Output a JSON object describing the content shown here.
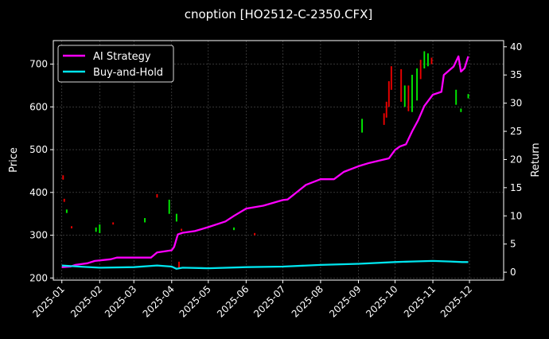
{
  "chart_data": {
    "type": "line",
    "title": "cnoption [HO2512-C-2350.CFX]",
    "ylabel_left": "Price",
    "ylabel_right": "Return",
    "xlabel": "",
    "xlim": [
      "2024-12-25",
      "2025-12-29"
    ],
    "ylim_left": [
      195,
      755
    ],
    "ylim_right": [
      -1.4,
      41.1
    ],
    "x_ticks": [
      "2025-01",
      "2025-02",
      "2025-03",
      "2025-04",
      "2025-05",
      "2025-06",
      "2025-07",
      "2025-08",
      "2025-09",
      "2025-10",
      "2025-11",
      "2025-12"
    ],
    "y_ticks_left": [
      200,
      300,
      400,
      500,
      600,
      700
    ],
    "y_ticks_right": [
      0,
      5,
      10,
      15,
      20,
      25,
      30,
      35,
      40
    ],
    "grid": true,
    "legend": {
      "position": "top-left",
      "entries": [
        "AI Strategy",
        "Buy-and-Hold"
      ]
    },
    "colors": {
      "ai_strategy": "#ff00ff",
      "buy_and_hold": "#00e5ee",
      "candle_up": "#00ff00",
      "candle_down": "#ff0000",
      "grid": "#555555",
      "axis": "#ffffff",
      "background": "#000000"
    },
    "series": [
      {
        "name": "AI Strategy",
        "axis": "right",
        "points": [
          [
            "2025-01-01",
            0.9
          ],
          [
            "2025-01-08",
            1.0
          ],
          [
            "2025-01-12",
            1.3
          ],
          [
            "2025-01-22",
            1.6
          ],
          [
            "2025-01-28",
            2.0
          ],
          [
            "2025-02-10",
            2.3
          ],
          [
            "2025-02-15",
            2.6
          ],
          [
            "2025-03-01",
            2.6
          ],
          [
            "2025-03-15",
            2.6
          ],
          [
            "2025-03-20",
            3.5
          ],
          [
            "2025-04-01",
            3.9
          ],
          [
            "2025-04-03",
            4.5
          ],
          [
            "2025-04-06",
            6.7
          ],
          [
            "2025-04-10",
            7.0
          ],
          [
            "2025-04-20",
            7.3
          ],
          [
            "2025-05-01",
            8.0
          ],
          [
            "2025-05-15",
            9.0
          ],
          [
            "2025-05-22",
            10.0
          ],
          [
            "2025-06-01",
            11.3
          ],
          [
            "2025-06-15",
            11.8
          ],
          [
            "2025-07-01",
            12.8
          ],
          [
            "2025-07-05",
            12.9
          ],
          [
            "2025-07-20",
            15.5
          ],
          [
            "2025-08-01",
            16.5
          ],
          [
            "2025-08-12",
            16.5
          ],
          [
            "2025-08-20",
            17.8
          ],
          [
            "2025-09-01",
            18.8
          ],
          [
            "2025-09-10",
            19.4
          ],
          [
            "2025-09-20",
            19.9
          ],
          [
            "2025-09-26",
            20.2
          ],
          [
            "2025-10-01",
            21.7
          ],
          [
            "2025-10-05",
            22.3
          ],
          [
            "2025-10-10",
            22.7
          ],
          [
            "2025-10-15",
            25.0
          ],
          [
            "2025-10-20",
            27.0
          ],
          [
            "2025-10-25",
            29.5
          ],
          [
            "2025-11-01",
            31.5
          ],
          [
            "2025-11-08",
            32.0
          ],
          [
            "2025-11-10",
            35.0
          ],
          [
            "2025-11-18",
            36.5
          ],
          [
            "2025-11-22",
            38.3
          ],
          [
            "2025-11-24",
            35.6
          ],
          [
            "2025-11-27",
            36.2
          ],
          [
            "2025-11-30",
            38.3
          ]
        ]
      },
      {
        "name": "Buy-and-Hold",
        "axis": "right",
        "points": [
          [
            "2025-01-01",
            1.2
          ],
          [
            "2025-01-15",
            1.0
          ],
          [
            "2025-02-01",
            0.8
          ],
          [
            "2025-03-01",
            0.9
          ],
          [
            "2025-03-20",
            1.2
          ],
          [
            "2025-04-01",
            1.0
          ],
          [
            "2025-04-05",
            0.6
          ],
          [
            "2025-04-10",
            0.8
          ],
          [
            "2025-05-01",
            0.7
          ],
          [
            "2025-06-01",
            0.9
          ],
          [
            "2025-07-01",
            1.0
          ],
          [
            "2025-08-01",
            1.3
          ],
          [
            "2025-09-01",
            1.5
          ],
          [
            "2025-10-01",
            1.8
          ],
          [
            "2025-10-15",
            1.9
          ],
          [
            "2025-11-01",
            2.0
          ],
          [
            "2025-11-15",
            1.9
          ],
          [
            "2025-11-25",
            1.8
          ],
          [
            "2025-11-30",
            1.8
          ]
        ]
      },
      {
        "name": "Price candles",
        "axis": "left",
        "type": "candlestick",
        "points": [
          {
            "date": "2025-01-02",
            "low": 430,
            "high": 440,
            "dir": "down"
          },
          {
            "date": "2025-01-03",
            "low": 378,
            "high": 385,
            "dir": "down"
          },
          {
            "date": "2025-01-05",
            "low": 352,
            "high": 360,
            "dir": "up"
          },
          {
            "date": "2025-01-09",
            "low": 316,
            "high": 321,
            "dir": "down"
          },
          {
            "date": "2025-01-29",
            "low": 308,
            "high": 318,
            "dir": "up"
          },
          {
            "date": "2025-02-01",
            "low": 305,
            "high": 325,
            "dir": "up"
          },
          {
            "date": "2025-02-12",
            "low": 325,
            "high": 330,
            "dir": "down"
          },
          {
            "date": "2025-03-10",
            "low": 330,
            "high": 340,
            "dir": "up"
          },
          {
            "date": "2025-03-20",
            "low": 388,
            "high": 396,
            "dir": "down"
          },
          {
            "date": "2025-03-30",
            "low": 350,
            "high": 383,
            "dir": "up"
          },
          {
            "date": "2025-04-05",
            "low": 332,
            "high": 350,
            "dir": "up"
          },
          {
            "date": "2025-04-07",
            "low": 222,
            "high": 238,
            "dir": "down"
          },
          {
            "date": "2025-04-09",
            "low": 310,
            "high": 315,
            "dir": "down"
          },
          {
            "date": "2025-05-22",
            "low": 312,
            "high": 318,
            "dir": "up"
          },
          {
            "date": "2025-06-08",
            "low": 300,
            "high": 305,
            "dir": "down"
          },
          {
            "date": "2025-09-04",
            "low": 540,
            "high": 572,
            "dir": "up"
          },
          {
            "date": "2025-09-22",
            "low": 558,
            "high": 585,
            "dir": "down"
          },
          {
            "date": "2025-09-24",
            "low": 575,
            "high": 612,
            "dir": "down"
          },
          {
            "date": "2025-09-26",
            "low": 600,
            "high": 660,
            "dir": "down"
          },
          {
            "date": "2025-09-28",
            "low": 640,
            "high": 695,
            "dir": "down"
          },
          {
            "date": "2025-10-06",
            "low": 612,
            "high": 688,
            "dir": "down"
          },
          {
            "date": "2025-10-09",
            "low": 600,
            "high": 650,
            "dir": "up"
          },
          {
            "date": "2025-10-12",
            "low": 590,
            "high": 650,
            "dir": "down"
          },
          {
            "date": "2025-10-15",
            "low": 588,
            "high": 675,
            "dir": "up"
          },
          {
            "date": "2025-10-19",
            "low": 615,
            "high": 690,
            "dir": "up"
          },
          {
            "date": "2025-10-22",
            "low": 665,
            "high": 710,
            "dir": "down"
          },
          {
            "date": "2025-10-25",
            "low": 690,
            "high": 730,
            "dir": "up"
          },
          {
            "date": "2025-10-28",
            "low": 695,
            "high": 725,
            "dir": "up"
          },
          {
            "date": "2025-10-31",
            "low": 700,
            "high": 715,
            "dir": "down"
          },
          {
            "date": "2025-11-20",
            "low": 605,
            "high": 640,
            "dir": "up"
          },
          {
            "date": "2025-11-24",
            "low": 588,
            "high": 596,
            "dir": "up"
          },
          {
            "date": "2025-11-30",
            "low": 620,
            "high": 630,
            "dir": "up"
          }
        ]
      }
    ]
  }
}
